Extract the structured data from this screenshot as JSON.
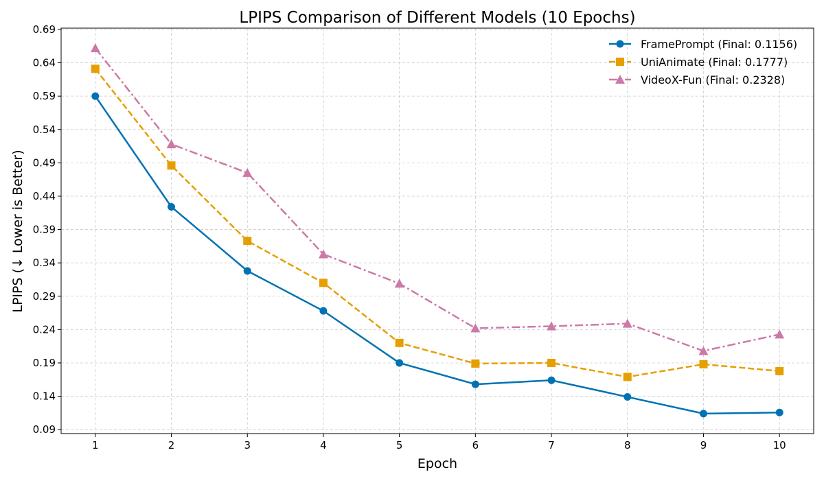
{
  "chart_data": {
    "type": "line",
    "title": "LPIPS Comparison of Different Models (10 Epochs)",
    "xlabel": "Epoch",
    "ylabel": "LPIPS (↓ Lower is Better)",
    "x": [
      1,
      2,
      3,
      4,
      5,
      6,
      7,
      8,
      9,
      10
    ],
    "xlim": [
      0.55,
      10.45
    ],
    "ylim": [
      0.084,
      0.692
    ],
    "yticks": [
      "0.09",
      "0.14",
      "0.19",
      "0.24",
      "0.29",
      "0.34",
      "0.39",
      "0.44",
      "0.49",
      "0.54",
      "0.59",
      "0.64",
      "0.69"
    ],
    "xticks": [
      "1",
      "2",
      "3",
      "4",
      "5",
      "6",
      "7",
      "8",
      "9",
      "10"
    ],
    "grid": true,
    "legend_position": "top-right",
    "series": [
      {
        "name": "FramePrompt (Final: 0.1156)",
        "color": "#0072B2",
        "marker": "circle",
        "linestyle": "solid",
        "values": [
          0.59,
          0.424,
          0.328,
          0.268,
          0.19,
          0.158,
          0.164,
          0.139,
          0.114,
          0.1156
        ]
      },
      {
        "name": "UniAnimate (Final: 0.1777)",
        "color": "#E69F00",
        "marker": "square",
        "linestyle": "dashed",
        "values": [
          0.631,
          0.486,
          0.373,
          0.31,
          0.22,
          0.189,
          0.19,
          0.169,
          0.188,
          0.1777
        ]
      },
      {
        "name": "VideoX-Fun (Final: 0.2328)",
        "color": "#CC79A7",
        "marker": "triangle",
        "linestyle": "dashdot",
        "values": [
          0.662,
          0.518,
          0.475,
          0.353,
          0.309,
          0.242,
          0.245,
          0.249,
          0.208,
          0.2328
        ]
      }
    ]
  }
}
